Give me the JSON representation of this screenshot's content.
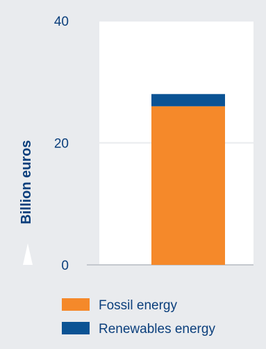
{
  "chart_data": {
    "type": "bar",
    "stacked": true,
    "categories": [
      ""
    ],
    "series": [
      {
        "name": "Fossil energy",
        "values": [
          26
        ],
        "color": "#f5892a"
      },
      {
        "name": "Renewables energy",
        "values": [
          2
        ],
        "color": "#0b5394"
      }
    ],
    "ylabel": "Billion euros",
    "ylim": [
      0,
      40
    ],
    "yticks": [
      "0",
      "20",
      "40"
    ],
    "grid": true,
    "legend_position": "bottom"
  },
  "colors": {
    "background": "#e9ebee",
    "plot_area": "#ffffff",
    "text": "#0b3f7c"
  }
}
